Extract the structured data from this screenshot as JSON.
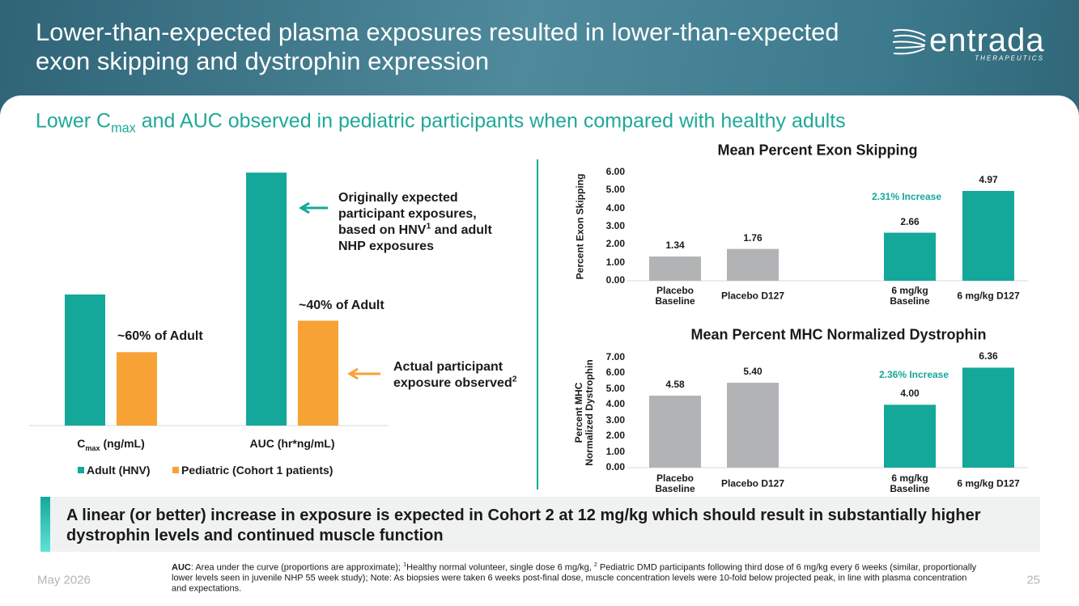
{
  "header": {
    "title": "Lower-than-expected plasma exposures resulted in lower-than-expected exon skipping and dystrophin expression",
    "logo": "entrada",
    "logo_sub": "THERAPEUTICS"
  },
  "subtitle": [
    "Lower C",
    "max",
    " and AUC observed in pediatric participants when compared with healthy adults"
  ],
  "chart_data": [
    {
      "type": "bar",
      "categories": [
        [
          "C",
          "max",
          " (ng/mL)"
        ],
        [
          "AUC (hr*ng/mL)"
        ]
      ],
      "series": [
        {
          "name": "Adult (HNV)",
          "color": "#13a89a",
          "values": [
            1.0,
            1.93
          ]
        },
        {
          "name": "Pediatric (Cohort 1 patients)",
          "color": "#f7a235",
          "values": [
            0.56,
            0.8
          ]
        }
      ],
      "ylim": [
        0,
        2
      ],
      "annotations": [
        [
          "~60% of Adult"
        ],
        [
          "~40% of Adult"
        ],
        [
          "Originally expected participant exposures, based on HNV",
          "1",
          " and adult NHP exposures"
        ],
        [
          "Actual participant exposure observed",
          "2"
        ]
      ]
    },
    {
      "type": "bar",
      "title": "Mean Percent Exon Skipping",
      "y_label": "Percent Exon Skipping",
      "categories": [
        "Placebo\nBaseline",
        "Placebo D127",
        "6 mg/kg\nBaseline",
        "6 mg/kg D127"
      ],
      "values": [
        1.34,
        1.76,
        2.66,
        4.97
      ],
      "value_labels": [
        "1.34",
        "1.76",
        "2.66",
        "4.97"
      ],
      "colors": [
        "#b1b3b4",
        "#b1b3b4",
        "#13a89a",
        "#13a89a"
      ],
      "ylim": [
        0,
        6
      ],
      "yticks": [
        {
          "value": 0,
          "label": "0.00"
        },
        {
          "value": 1,
          "label": "1.00"
        },
        {
          "value": 2,
          "label": "2.00"
        },
        {
          "value": 3,
          "label": "3.00"
        },
        {
          "value": 4,
          "label": "4.00"
        },
        {
          "value": 5,
          "label": "5.00"
        },
        {
          "value": 6,
          "label": "6.00"
        }
      ],
      "annotations": [
        [
          "2.31% Increase"
        ]
      ]
    },
    {
      "type": "bar",
      "title": "Mean Percent MHC Normalized Dystrophin",
      "y_label": "Percent MHC Normalized Dystrophin",
      "categories": [
        "Placebo\nBaseline",
        "Placebo D127",
        "6 mg/kg\nBaseline",
        "6 mg/kg D127"
      ],
      "values": [
        4.58,
        5.4,
        4.0,
        6.36
      ],
      "value_labels": [
        "4.58",
        "5.40",
        "4.00",
        "6.36"
      ],
      "colors": [
        "#b1b3b4",
        "#b1b3b4",
        "#13a89a",
        "#13a89a"
      ],
      "ylim": [
        0,
        7
      ],
      "yticks": [
        {
          "value": 0,
          "label": "0.00"
        },
        {
          "value": 1,
          "label": "1.00"
        },
        {
          "value": 2,
          "label": "2.00"
        },
        {
          "value": 3,
          "label": "3.00"
        },
        {
          "value": 4,
          "label": "4.00"
        },
        {
          "value": 5,
          "label": "5.00"
        },
        {
          "value": 6,
          "label": "6.00"
        },
        {
          "value": 7,
          "label": "7.00"
        }
      ],
      "annotations": [
        [
          "2.36% Increase"
        ]
      ]
    }
  ],
  "callout": "A linear (or better) increase in exposure is expected in Cohort 2 at 12 mg/kg which should result in substantially higher dystrophin levels and continued muscle function",
  "footnote": [
    "AUC",
    ": Area under the curve (proportions are approximate); ",
    "1",
    "Healthy normal volunteer, single dose 6 mg/kg, ",
    "2",
    " Pediatric DMD participants following third dose of 6 mg/kg every 6 weeks (similar, proportionally lower levels seen in juvenile NHP 55 week study); Note: As biopsies were taken 6 weeks post-final dose, muscle concentration levels were 10-fold below projected peak, in line with plasma concentration and expectations."
  ],
  "footer": {
    "date": "May 2026",
    "page": 25
  }
}
